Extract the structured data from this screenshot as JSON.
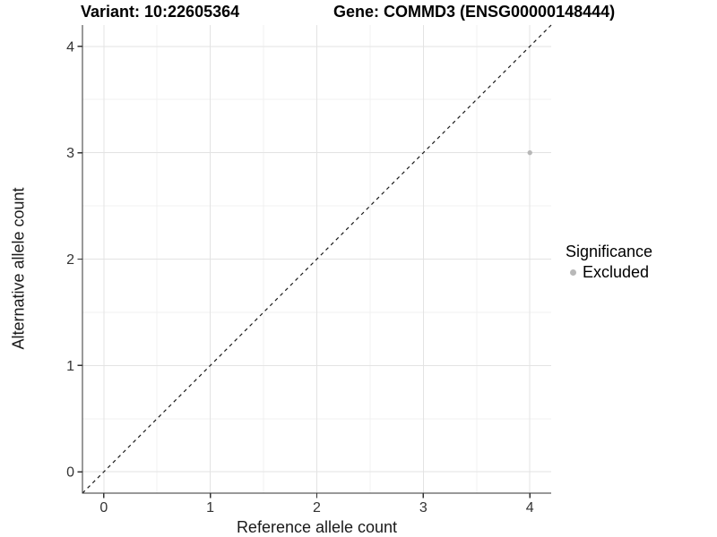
{
  "titles": {
    "variant": "Variant: 10:22605364",
    "gene": "Gene: COMMD3 (ENSG00000148444)"
  },
  "chart_data": {
    "type": "scatter",
    "title": "Variant: 10:22605364 — Gene: COMMD3 (ENSG00000148444)",
    "xlabel": "Reference allele count",
    "ylabel": "Alternative allele count",
    "xlim": [
      -0.2,
      4.2
    ],
    "ylim": [
      -0.2,
      4.2
    ],
    "x_ticks": [
      0,
      1,
      2,
      3,
      4
    ],
    "y_ticks": [
      0,
      1,
      2,
      3,
      4
    ],
    "grid": {
      "major": true,
      "minor": true
    },
    "points": [
      {
        "x": 4,
        "y": 3,
        "significance": "Excluded"
      }
    ],
    "identity_line": {
      "style": "dashed",
      "slope": 1,
      "intercept": 0
    },
    "legend": {
      "title": "Significance",
      "position": "right",
      "entries": [
        {
          "label": "Excluded",
          "color": "#b8b8b8",
          "marker": "circle"
        }
      ]
    },
    "colors": {
      "point": "#b8b8b8",
      "grid_major": "#e3e3e3",
      "grid_minor": "#f1f1f1",
      "axis": "#333333",
      "dashed_line": "#1a1a1a",
      "tick_text": "#333333"
    }
  }
}
